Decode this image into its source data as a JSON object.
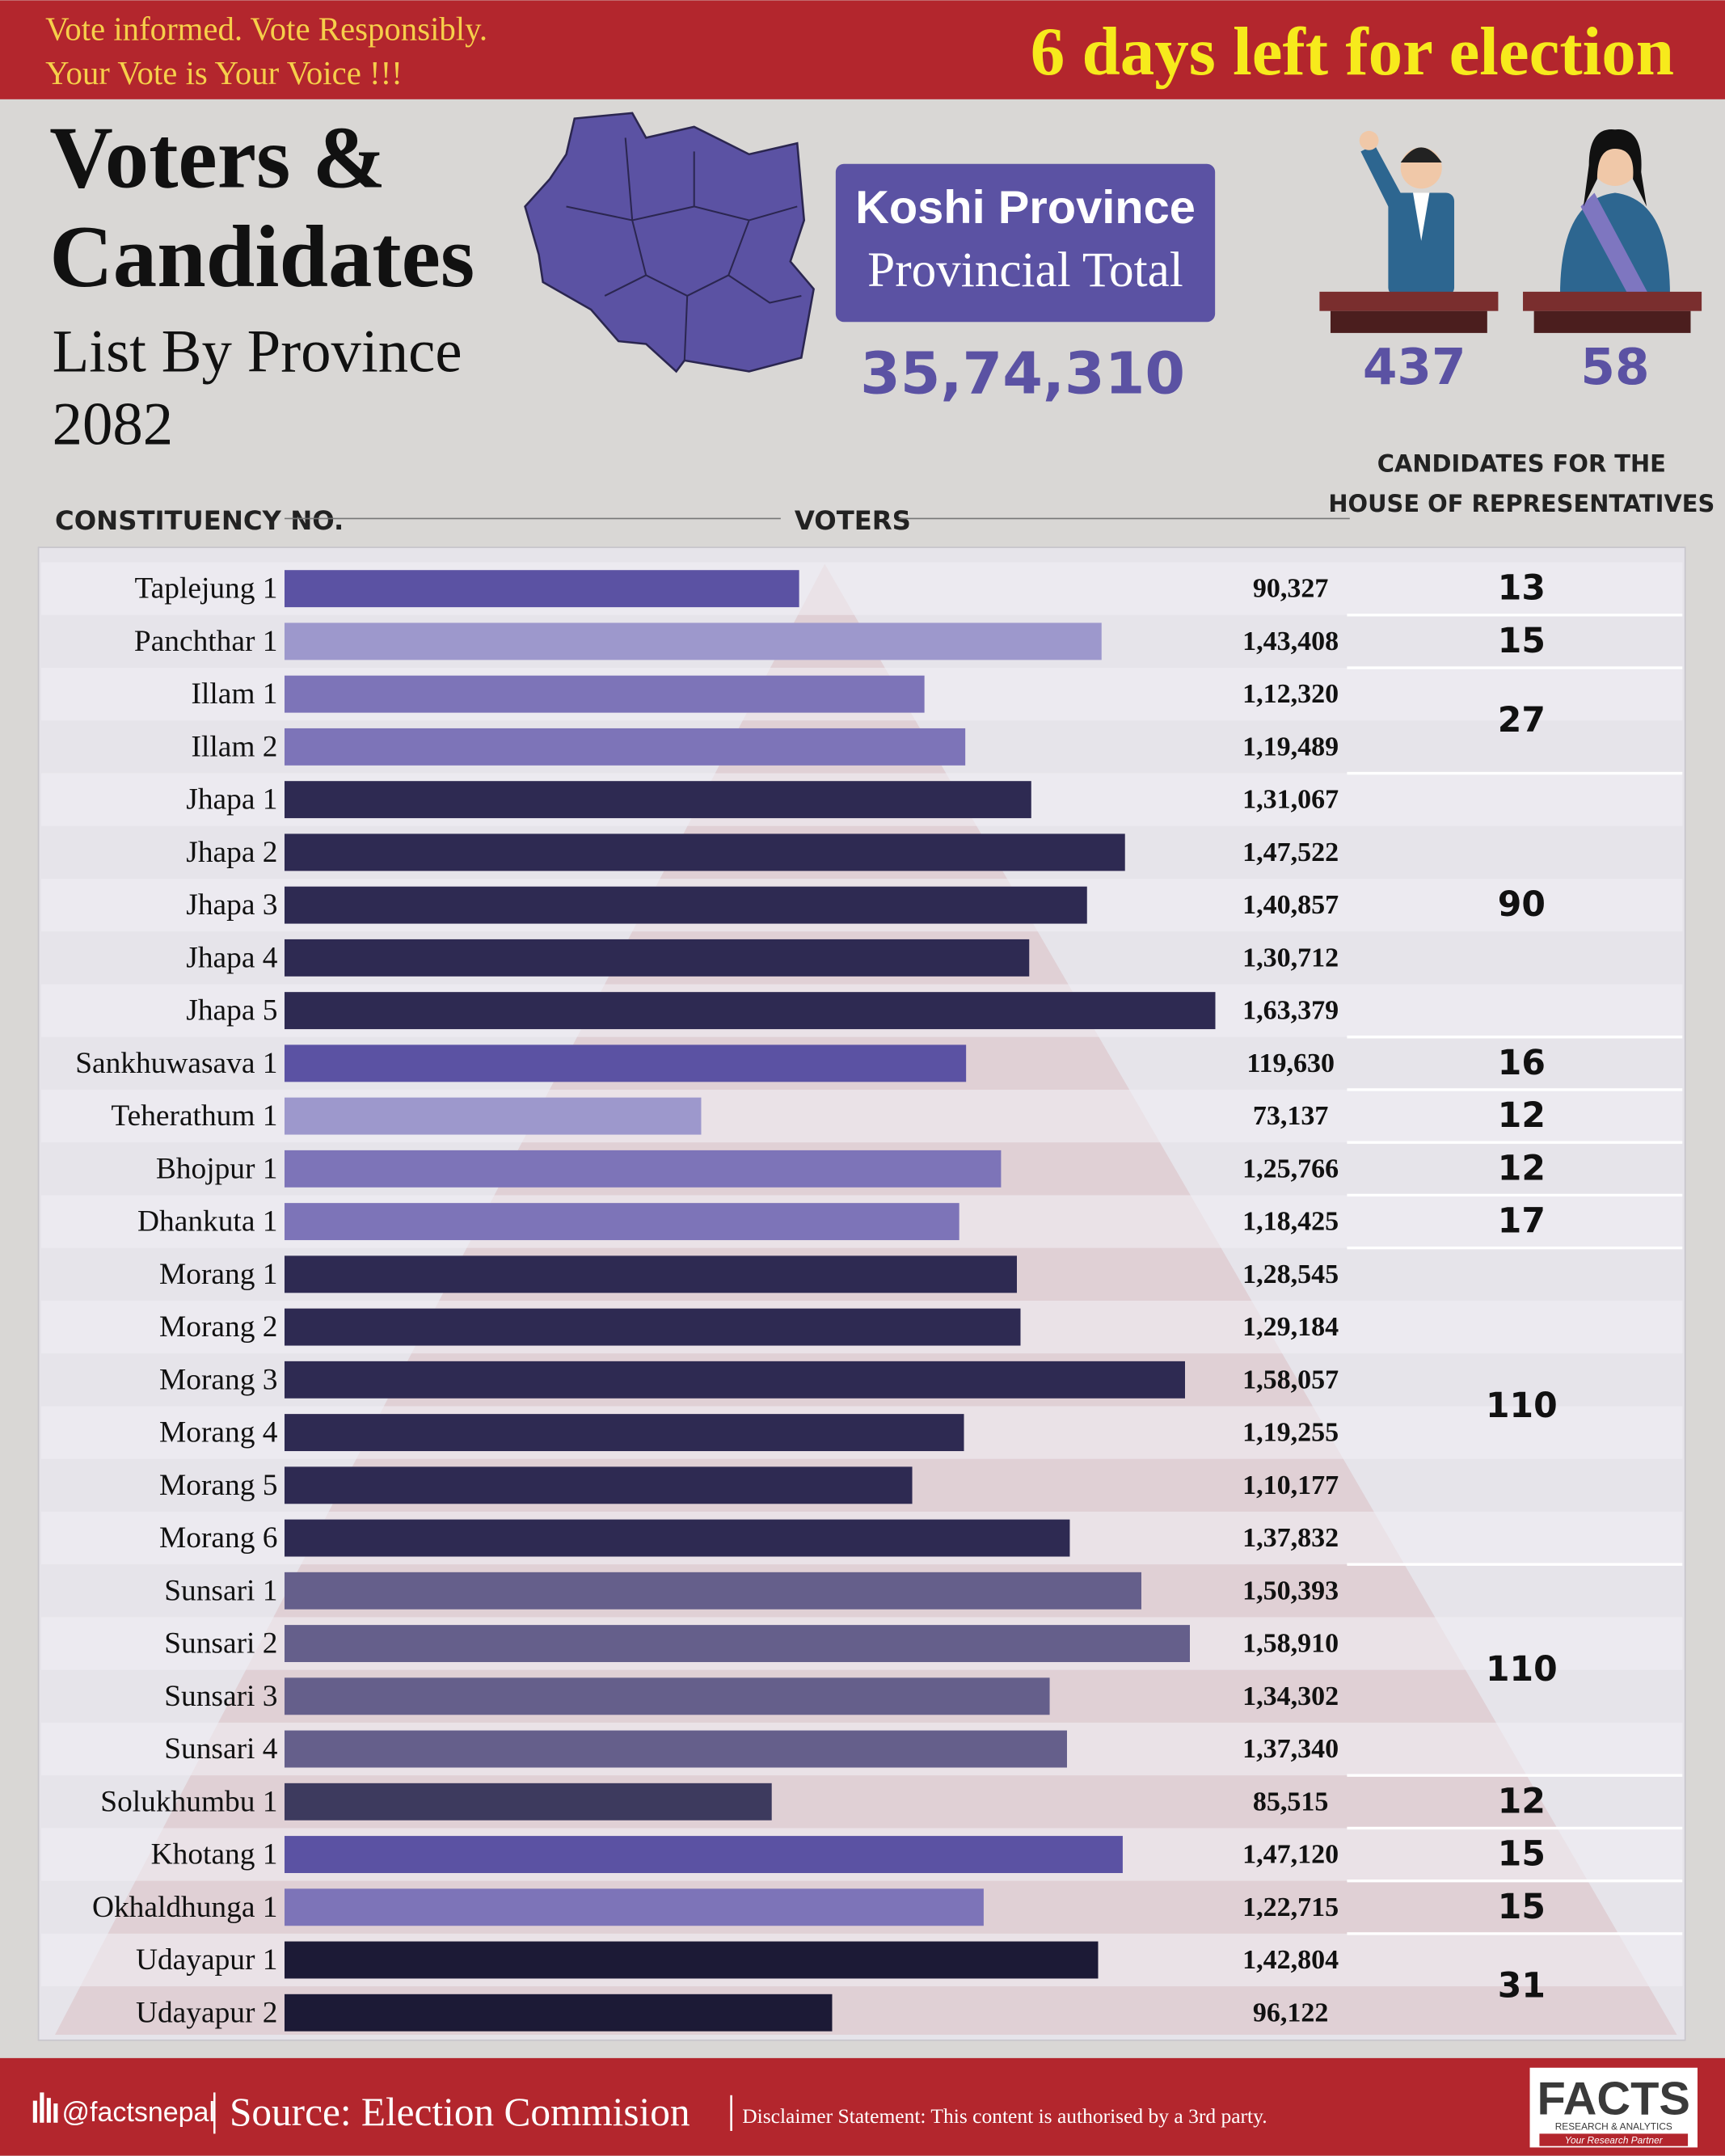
{
  "header": {
    "tagline": [
      "Vote informed. Vote Responsibly.",
      "Your Vote is Your Voice !!!"
    ],
    "countdown": "6 days left for election"
  },
  "title": {
    "lines": [
      "Voters &",
      "Candidates"
    ],
    "subtitle": "List By Province",
    "year": "2082"
  },
  "province": {
    "name": "Koshi Province",
    "label": "Provincial Total",
    "total_voters": "35,74,310"
  },
  "candidates_by_gender": {
    "male": 437,
    "female": 58
  },
  "footer": {
    "handle": "@factsnepal",
    "source": "Source: Election Commision",
    "disclaimer": "Disclaimer Statement: This content is authorised by a 3rd party.",
    "logo": "FACTS",
    "logo_sub": "RESEARCH & ANALYTICS",
    "logo_tag": "Your Research Partner"
  },
  "chart_data": {
    "type": "bar",
    "orientation": "horizontal",
    "column_headers": {
      "category": "CONSTITUENCY NO.",
      "value": "VOTERS",
      "candidates": [
        "CANDIDATES FOR THE",
        "HOUSE OF REPRESENTATIVES"
      ]
    },
    "categories": [
      "Taplejung 1",
      "Panchthar 1",
      "Illam 1",
      "Illam 2",
      "Jhapa 1",
      "Jhapa 2",
      "Jhapa 3",
      "Jhapa 4",
      "Jhapa 5",
      "Sankhuwasava 1",
      "Teherathum 1",
      "Bhojpur 1",
      "Dhankuta 1",
      "Morang 1",
      "Morang 2",
      "Morang 3",
      "Morang 4",
      "Morang 5",
      "Morang 6",
      "Sunsari 1",
      "Sunsari 2",
      "Sunsari 3",
      "Sunsari 4",
      "Solukhumbu 1",
      "Khotang 1",
      "Okhaldhunga 1",
      "Udayapur 1",
      "Udayapur 2"
    ],
    "values": [
      90327,
      143408,
      112320,
      119489,
      131067,
      147522,
      140857,
      130712,
      163379,
      119630,
      73137,
      125766,
      118425,
      128545,
      129184,
      158057,
      119255,
      110177,
      137832,
      150393,
      158910,
      134302,
      137340,
      85515,
      147120,
      122715,
      142804,
      96122
    ],
    "value_labels": [
      "90,327",
      "1,43,408",
      "1,12,320",
      "1,19,489",
      "1,31,067",
      "1,47,522",
      "1,40,857",
      "1,30,712",
      "1,63,379",
      "119,630",
      "73,137",
      "1,25,766",
      "1,18,425",
      "1,28,545",
      "1,29,184",
      "1,58,057",
      "1,19,255",
      "1,10,177",
      "1,37,832",
      "1,50,393",
      "1,58,910",
      "1,34,302",
      "1,37,340",
      "85,515",
      "1,47,120",
      "1,22,715",
      "1,42,804",
      "96,122"
    ],
    "colors": [
      "#5b52a3",
      "#9d98cc",
      "#7d74b8",
      "#7d74b8",
      "#2e2a52",
      "#2e2a52",
      "#2e2a52",
      "#2e2a52",
      "#2e2a52",
      "#5b52a3",
      "#9d98cc",
      "#7d74b8",
      "#7d74b8",
      "#2e2a52",
      "#2e2a52",
      "#2e2a52",
      "#2e2a52",
      "#2e2a52",
      "#2e2a52",
      "#655f8b",
      "#655f8b",
      "#655f8b",
      "#655f8b",
      "#3d3a5e",
      "#5b52a3",
      "#7d74b8",
      "#1c1a36",
      "#1c1a36"
    ],
    "xlim": [
      0,
      200000
    ],
    "candidate_groups": [
      {
        "count": 13,
        "rows": 1
      },
      {
        "count": 15,
        "rows": 1
      },
      {
        "count": 27,
        "rows": 2
      },
      {
        "count": 90,
        "rows": 5
      },
      {
        "count": 16,
        "rows": 1
      },
      {
        "count": 12,
        "rows": 1
      },
      {
        "count": 12,
        "rows": 1
      },
      {
        "count": 17,
        "rows": 1
      },
      {
        "count": 110,
        "rows": 6
      },
      {
        "count": 110,
        "rows": 4
      },
      {
        "count": 12,
        "rows": 1
      },
      {
        "count": 15,
        "rows": 1
      },
      {
        "count": 15,
        "rows": 1
      },
      {
        "count": 31,
        "rows": 2
      }
    ]
  }
}
